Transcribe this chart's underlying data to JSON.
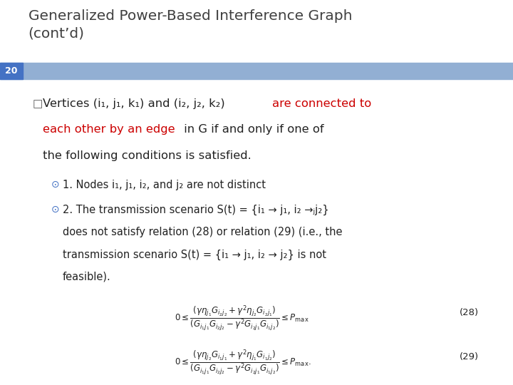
{
  "bg_color": "#ffffff",
  "title_text": "Generalized Power-Based Interference Graph\n(cont’d)",
  "title_color": "#404040",
  "title_fontsize": 14.5,
  "slide_number": "20",
  "slide_num_bg": "#4472c4",
  "slide_num_color": "#ffffff",
  "header_bar_color": "#92afd3",
  "main_text_color": "#222222",
  "red_color": "#cc0000",
  "blue_bullet_color": "#4472c4",
  "eq28": "$0 \\leq \\dfrac{(\\gamma\\eta_{j_1}G_{i_2 j_2} + \\gamma^2\\eta_{j_2}G_{i_2 j_1})}{(G_{i_1 j_1}G_{i_2 j_2} - \\gamma^2 G_{i_2 j_1}G_{i_1 j_2})} \\leq P_{\\mathrm{max}}$",
  "eq28_label": "(28)",
  "eq29": "$0 \\leq \\dfrac{(\\gamma\\eta_{j_2}G_{i_1 j_1} + \\gamma^2\\eta_{j_1}G_{i_1 j_2})}{(G_{i_1 j_1}G_{i_2 j_2} - \\gamma^2 G_{i_2 j_1}G_{i_1 j_2})} \\leq P_{\\mathrm{max}}.$",
  "eq29_label": "(29)"
}
